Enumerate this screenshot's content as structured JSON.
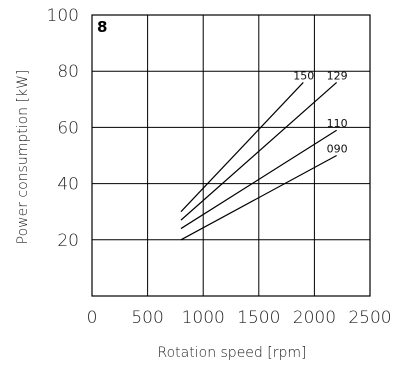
{
  "chart_data": {
    "type": "line",
    "panel_label": "8",
    "xlabel": "Rotation speed [rpm]",
    "ylabel": "Power consumption [kW]",
    "xlim": [
      0,
      2500
    ],
    "ylim": [
      0,
      100
    ],
    "xticks": [
      "0",
      "500",
      "1000",
      "1500",
      "2000",
      "2500"
    ],
    "yticks": [
      "20",
      "40",
      "60",
      "80",
      "100"
    ],
    "grid": true,
    "series": [
      {
        "name": "150",
        "x": [
          800,
          1900
        ],
        "y": [
          30,
          76
        ]
      },
      {
        "name": "129",
        "x": [
          800,
          2200
        ],
        "y": [
          27,
          76
        ]
      },
      {
        "name": "110",
        "x": [
          800,
          2200
        ],
        "y": [
          24,
          59
        ]
      },
      {
        "name": "090",
        "x": [
          800,
          2200
        ],
        "y": [
          20,
          50
        ]
      }
    ]
  }
}
